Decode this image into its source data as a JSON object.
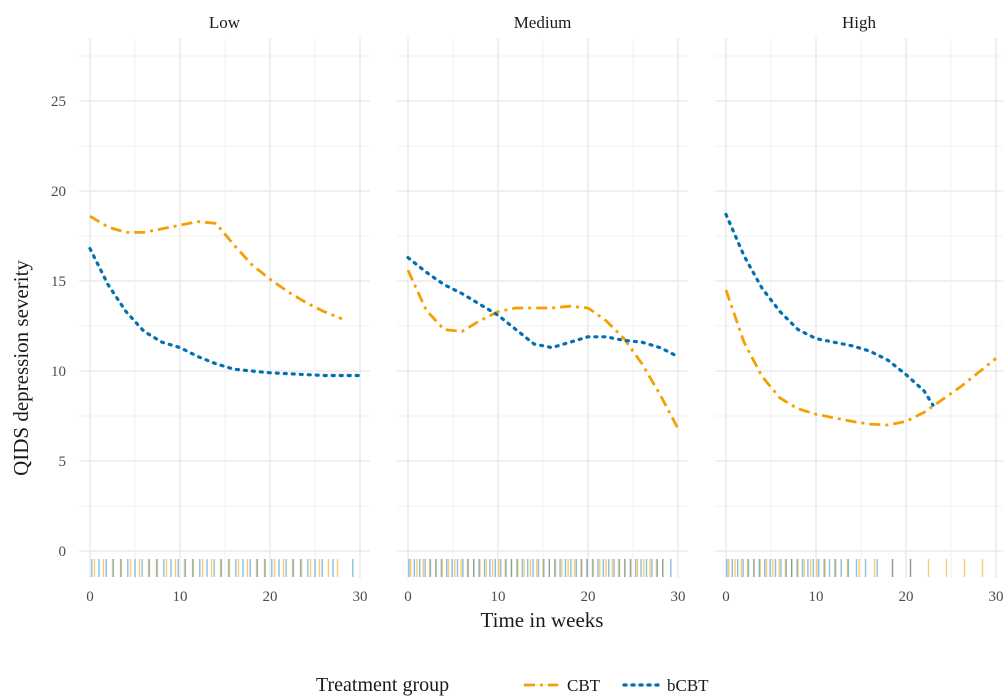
{
  "chart_data": {
    "type": "line",
    "ylabel": "QIDS depression severity",
    "xlabel": "Time in weeks",
    "xlim": [
      0,
      30
    ],
    "ylim": [
      0,
      28
    ],
    "x_ticks": [
      0,
      10,
      20,
      30
    ],
    "y_ticks": [
      0,
      5,
      10,
      15,
      20,
      25
    ],
    "grid": true,
    "legend": {
      "title": "Treatment group",
      "position": "bottom",
      "entries": [
        {
          "label": "CBT",
          "color": "#F5A000",
          "dash": "dashdot"
        },
        {
          "label": "bCBT",
          "color": "#0072B2",
          "dash": "dotted"
        }
      ]
    },
    "colors": {
      "CBT": "#F5A000",
      "bCBT": "#0072B2"
    },
    "panels": [
      {
        "name": "Low",
        "series": [
          {
            "name": "CBT",
            "points": [
              [
                0,
                18.6
              ],
              [
                2,
                18.0
              ],
              [
                4,
                17.7
              ],
              [
                6,
                17.7
              ],
              [
                8,
                17.9
              ],
              [
                10,
                18.1
              ],
              [
                12,
                18.3
              ],
              [
                14,
                18.2
              ],
              [
                16,
                17.0
              ],
              [
                18,
                15.9
              ],
              [
                20,
                15.1
              ],
              [
                22,
                14.4
              ],
              [
                24,
                13.8
              ],
              [
                26,
                13.3
              ],
              [
                28,
                12.9
              ]
            ]
          },
          {
            "name": "bCBT",
            "points": [
              [
                0,
                16.8
              ],
              [
                2,
                14.8
              ],
              [
                4,
                13.3
              ],
              [
                6,
                12.2
              ],
              [
                8,
                11.6
              ],
              [
                10,
                11.3
              ],
              [
                12,
                10.8
              ],
              [
                14,
                10.4
              ],
              [
                16,
                10.1
              ],
              [
                18,
                10.0
              ],
              [
                20,
                9.9
              ],
              [
                22,
                9.85
              ],
              [
                24,
                9.8
              ],
              [
                26,
                9.75
              ],
              [
                28,
                9.75
              ],
              [
                30,
                9.75
              ]
            ]
          }
        ],
        "rug": {
          "CBT": [
            0.5,
            1.5,
            2.5,
            3.5,
            4.5,
            5.5,
            6.5,
            7.5,
            8.5,
            9.5,
            10.5,
            11.5,
            12.5,
            13.5,
            14.5,
            15.5,
            16.5,
            17.5,
            18.5,
            19.5,
            20.5,
            21.5,
            22.5,
            23.5,
            24.5,
            25.5,
            26.5,
            27.5
          ],
          "bCBT": [
            0.2,
            1,
            1.8,
            2.6,
            3.4,
            4.2,
            5,
            5.8,
            6.6,
            7.4,
            8.2,
            9,
            9.8,
            10.6,
            11.4,
            12.2,
            13,
            13.8,
            14.6,
            15.4,
            16.2,
            17,
            17.8,
            18.6,
            19.4,
            20.2,
            21,
            21.8,
            22.6,
            23.4,
            24.2,
            25,
            25.8,
            27,
            29.2
          ]
        }
      },
      {
        "name": "Medium",
        "series": [
          {
            "name": "CBT",
            "points": [
              [
                0,
                15.6
              ],
              [
                2,
                13.4
              ],
              [
                4,
                12.3
              ],
              [
                6,
                12.2
              ],
              [
                8,
                12.8
              ],
              [
                10,
                13.3
              ],
              [
                12,
                13.5
              ],
              [
                14,
                13.5
              ],
              [
                16,
                13.5
              ],
              [
                18,
                13.6
              ],
              [
                20,
                13.5
              ],
              [
                22,
                12.8
              ],
              [
                24,
                11.8
              ],
              [
                26,
                10.4
              ],
              [
                28,
                8.7
              ],
              [
                30,
                6.8
              ]
            ]
          },
          {
            "name": "bCBT",
            "points": [
              [
                0,
                16.3
              ],
              [
                2,
                15.5
              ],
              [
                4,
                14.8
              ],
              [
                6,
                14.3
              ],
              [
                8,
                13.7
              ],
              [
                10,
                13.1
              ],
              [
                12,
                12.3
              ],
              [
                14,
                11.5
              ],
              [
                16,
                11.3
              ],
              [
                18,
                11.6
              ],
              [
                20,
                11.9
              ],
              [
                22,
                11.9
              ],
              [
                24,
                11.7
              ],
              [
                26,
                11.6
              ],
              [
                28,
                11.3
              ],
              [
                30,
                10.8
              ]
            ]
          }
        ],
        "rug": {
          "CBT": [
            0.3,
            1,
            1.7,
            2.4,
            3.1,
            3.8,
            4.5,
            5.2,
            5.9,
            6.6,
            7.3,
            8,
            8.7,
            9.4,
            10.1,
            10.8,
            11.5,
            12.2,
            12.9,
            13.6,
            14.3,
            15,
            15.7,
            16.4,
            17.1,
            17.8,
            18.5,
            19.2,
            19.9,
            20.6,
            21.3,
            22,
            22.7,
            23.4,
            24.1,
            24.8,
            25.5,
            26.2,
            26.9,
            27.6,
            28.3
          ],
          "bCBT": [
            0.1,
            0.7,
            1.3,
            1.9,
            2.5,
            3.1,
            3.7,
            4.3,
            4.9,
            5.5,
            6.1,
            6.7,
            7.3,
            7.9,
            8.5,
            9.1,
            9.7,
            10.3,
            10.9,
            11.5,
            12.1,
            12.7,
            13.3,
            13.9,
            14.5,
            15.1,
            15.7,
            16.3,
            16.9,
            17.5,
            18.1,
            18.7,
            19.3,
            19.9,
            20.5,
            21.1,
            21.7,
            22.3,
            22.9,
            23.5,
            24.1,
            24.7,
            25.3,
            25.9,
            26.5,
            27.1,
            27.7,
            28.3,
            29.2
          ]
        }
      },
      {
        "name": "High",
        "series": [
          {
            "name": "CBT",
            "points": [
              [
                0,
                14.5
              ],
              [
                2,
                11.6
              ],
              [
                4,
                9.7
              ],
              [
                6,
                8.5
              ],
              [
                8,
                7.9
              ],
              [
                10,
                7.6
              ],
              [
                12,
                7.4
              ],
              [
                14,
                7.2
              ],
              [
                16,
                7.05
              ],
              [
                18,
                7.0
              ],
              [
                20,
                7.2
              ],
              [
                22,
                7.7
              ],
              [
                24,
                8.4
              ],
              [
                26,
                9.1
              ],
              [
                28,
                9.9
              ],
              [
                30,
                10.7
              ]
            ]
          },
          {
            "name": "bCBT",
            "points": [
              [
                0,
                18.7
              ],
              [
                2,
                16.4
              ],
              [
                4,
                14.6
              ],
              [
                6,
                13.3
              ],
              [
                8,
                12.3
              ],
              [
                10,
                11.8
              ],
              [
                12,
                11.6
              ],
              [
                14,
                11.4
              ],
              [
                16,
                11.1
              ],
              [
                18,
                10.6
              ],
              [
                20,
                9.8
              ],
              [
                22,
                8.9
              ],
              [
                23,
                8.1
              ]
            ]
          }
        ],
        "rug": {
          "CBT": [
            0.3,
            1,
            1.7,
            2.4,
            3.1,
            3.8,
            4.5,
            5.2,
            5.9,
            6.6,
            7.3,
            8,
            8.7,
            9.4,
            10.1,
            11,
            12.2,
            13.5,
            14.8,
            16.5,
            18.5,
            20.5,
            22.5,
            24.5,
            26.5,
            28.5
          ],
          "bCBT": [
            0.1,
            0.7,
            1.3,
            1.9,
            2.5,
            3.1,
            3.7,
            4.3,
            4.9,
            5.5,
            6.1,
            6.7,
            7.3,
            7.9,
            8.5,
            9.1,
            9.7,
            10.3,
            10.9,
            11.5,
            12.1,
            12.8,
            13.6,
            14.5,
            15.5,
            16.8,
            18.5,
            20.5
          ]
        }
      }
    ]
  }
}
